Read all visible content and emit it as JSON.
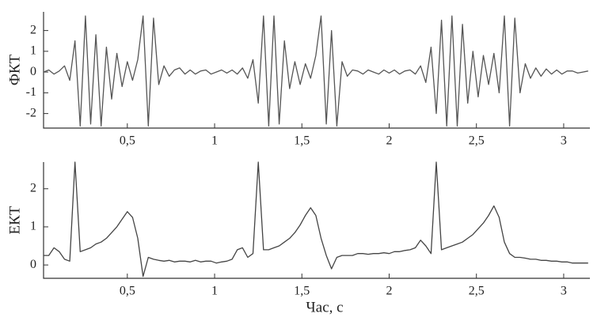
{
  "chart_data": [
    {
      "type": "line",
      "ylabel": "ФКТ",
      "color": "#555555",
      "xlim": [
        0.02,
        3.15
      ],
      "ylim": [
        -2.7,
        2.9
      ],
      "xticks": [
        {
          "value": 0.5,
          "label": "0,5"
        },
        1,
        {
          "value": 1.5,
          "label": "1,5"
        },
        2,
        {
          "value": 2.5,
          "label": "2,5"
        },
        3
      ],
      "yticks": [
        -2,
        -1,
        0,
        1,
        2
      ],
      "x": [
        0.02,
        0.05,
        0.08,
        0.11,
        0.14,
        0.17,
        0.2,
        0.23,
        0.26,
        0.29,
        0.32,
        0.35,
        0.38,
        0.41,
        0.44,
        0.47,
        0.5,
        0.53,
        0.56,
        0.59,
        0.62,
        0.65,
        0.68,
        0.71,
        0.74,
        0.77,
        0.8,
        0.83,
        0.86,
        0.89,
        0.92,
        0.95,
        0.98,
        1.01,
        1.04,
        1.07,
        1.1,
        1.13,
        1.16,
        1.19,
        1.22,
        1.25,
        1.28,
        1.31,
        1.34,
        1.37,
        1.4,
        1.43,
        1.46,
        1.49,
        1.52,
        1.55,
        1.58,
        1.61,
        1.64,
        1.67,
        1.7,
        1.73,
        1.76,
        1.79,
        1.82,
        1.85,
        1.88,
        1.91,
        1.94,
        1.97,
        2.0,
        2.03,
        2.06,
        2.09,
        2.12,
        2.15,
        2.18,
        2.21,
        2.24,
        2.27,
        2.3,
        2.33,
        2.36,
        2.39,
        2.42,
        2.45,
        2.48,
        2.51,
        2.54,
        2.57,
        2.6,
        2.63,
        2.66,
        2.69,
        2.72,
        2.75,
        2.78,
        2.81,
        2.84,
        2.87,
        2.9,
        2.93,
        2.96,
        2.99,
        3.02,
        3.05,
        3.08,
        3.11,
        3.14
      ],
      "values": [
        0,
        0.1,
        -0.1,
        0.05,
        0.3,
        -0.4,
        1.5,
        -2.6,
        2.7,
        -2.5,
        1.8,
        -2.6,
        1.2,
        -1.3,
        0.9,
        -0.7,
        0.5,
        -0.4,
        0.6,
        2.7,
        -2.6,
        2.6,
        -0.6,
        0.3,
        -0.2,
        0.1,
        0.2,
        -0.1,
        0.1,
        -0.1,
        0.05,
        0.1,
        -0.1,
        0,
        0.1,
        -0.05,
        0.1,
        -0.1,
        0.2,
        -0.3,
        0.6,
        -1.5,
        2.7,
        -2.6,
        2.7,
        -2.5,
        1.5,
        -0.8,
        0.5,
        -0.6,
        0.4,
        -0.3,
        0.8,
        2.7,
        -2.5,
        2.0,
        -2.6,
        0.5,
        -0.2,
        0.1,
        0.05,
        -0.1,
        0.1,
        0,
        -0.1,
        0.1,
        -0.05,
        0.1,
        -0.1,
        0.05,
        0.1,
        -0.1,
        0.3,
        -0.5,
        1.2,
        -2.0,
        2.5,
        -2.6,
        2.7,
        -2.6,
        2.3,
        -1.5,
        1.0,
        -1.2,
        0.8,
        -0.6,
        0.9,
        -1.0,
        2.7,
        -2.6,
        2.6,
        -1.0,
        0.4,
        -0.3,
        0.2,
        -0.2,
        0.15,
        -0.1,
        0.1,
        -0.1,
        0.05,
        0.05,
        -0.05,
        0,
        0.05
      ]
    },
    {
      "type": "line",
      "ylabel": "ЕКТ",
      "xlabel": "Час, с",
      "color": "#444444",
      "xlim": [
        0.02,
        3.15
      ],
      "ylim": [
        -0.35,
        2.7
      ],
      "xticks": [
        {
          "value": 0.5,
          "label": "0,5"
        },
        1,
        {
          "value": 1.5,
          "label": "1,5"
        },
        2,
        {
          "value": 2.5,
          "label": "2,5"
        },
        3
      ],
      "yticks": [
        0,
        1,
        2
      ],
      "x": [
        0.02,
        0.05,
        0.08,
        0.11,
        0.14,
        0.17,
        0.2,
        0.23,
        0.26,
        0.29,
        0.32,
        0.35,
        0.38,
        0.41,
        0.44,
        0.47,
        0.5,
        0.53,
        0.56,
        0.59,
        0.62,
        0.65,
        0.68,
        0.71,
        0.74,
        0.77,
        0.8,
        0.83,
        0.86,
        0.89,
        0.92,
        0.95,
        0.98,
        1.01,
        1.04,
        1.07,
        1.1,
        1.13,
        1.16,
        1.19,
        1.22,
        1.25,
        1.28,
        1.31,
        1.34,
        1.37,
        1.4,
        1.43,
        1.46,
        1.49,
        1.52,
        1.55,
        1.58,
        1.61,
        1.64,
        1.67,
        1.7,
        1.73,
        1.76,
        1.79,
        1.82,
        1.85,
        1.88,
        1.91,
        1.94,
        1.97,
        2.0,
        2.03,
        2.06,
        2.09,
        2.12,
        2.15,
        2.18,
        2.21,
        2.24,
        2.27,
        2.3,
        2.33,
        2.36,
        2.39,
        2.42,
        2.45,
        2.48,
        2.51,
        2.54,
        2.57,
        2.6,
        2.63,
        2.66,
        2.69,
        2.72,
        2.75,
        2.78,
        2.81,
        2.84,
        2.87,
        2.9,
        2.93,
        2.96,
        2.99,
        3.02,
        3.05,
        3.08,
        3.11,
        3.14
      ],
      "values": [
        0.25,
        0.25,
        0.45,
        0.35,
        0.15,
        0.1,
        2.7,
        0.35,
        0.4,
        0.45,
        0.55,
        0.6,
        0.7,
        0.85,
        1.0,
        1.2,
        1.4,
        1.25,
        0.7,
        -0.3,
        0.2,
        0.15,
        0.12,
        0.1,
        0.12,
        0.08,
        0.1,
        0.1,
        0.08,
        0.12,
        0.08,
        0.1,
        0.1,
        0.05,
        0.08,
        0.1,
        0.15,
        0.4,
        0.45,
        0.2,
        0.3,
        2.7,
        0.4,
        0.4,
        0.45,
        0.5,
        0.6,
        0.7,
        0.85,
        1.05,
        1.3,
        1.5,
        1.3,
        0.7,
        0.25,
        -0.1,
        0.2,
        0.25,
        0.25,
        0.25,
        0.3,
        0.3,
        0.28,
        0.3,
        0.3,
        0.32,
        0.3,
        0.35,
        0.35,
        0.38,
        0.4,
        0.45,
        0.65,
        0.5,
        0.3,
        2.7,
        0.4,
        0.45,
        0.5,
        0.55,
        0.6,
        0.7,
        0.8,
        0.95,
        1.1,
        1.3,
        1.55,
        1.25,
        0.6,
        0.3,
        0.2,
        0.2,
        0.18,
        0.15,
        0.15,
        0.12,
        0.12,
        0.1,
        0.1,
        0.08,
        0.08,
        0.05,
        0.05,
        0.05,
        0.05
      ]
    }
  ]
}
